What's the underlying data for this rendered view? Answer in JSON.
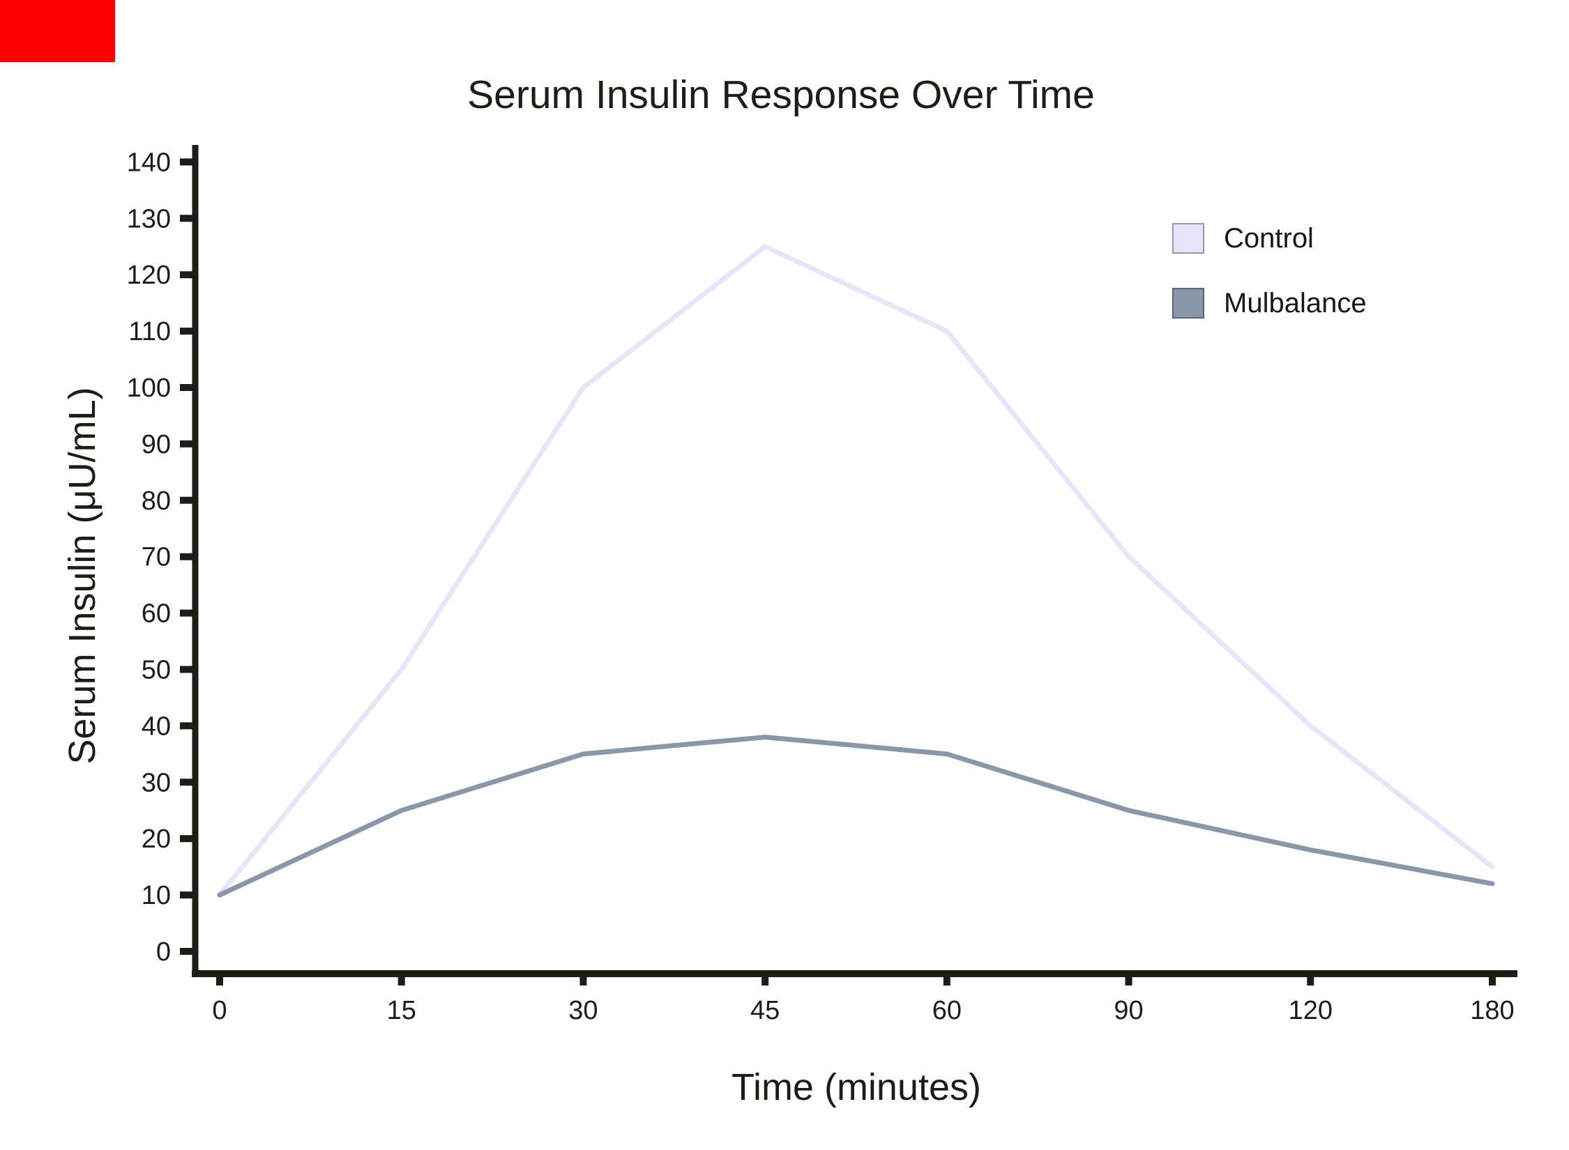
{
  "page": {
    "background": "#ffffff"
  },
  "artifact": {
    "description": "red rectangle in top-left corner",
    "color": "#fe0000"
  },
  "chart_data": {
    "type": "line",
    "title": "Serum Insulin Response Over Time",
    "xlabel": "Time (minutes)",
    "ylabel": "Serum Insulin (μU/mL)",
    "categories": [
      "0",
      "15",
      "30",
      "45",
      "60",
      "90",
      "120",
      "180"
    ],
    "yticks": [
      "0",
      "10",
      "20",
      "30",
      "40",
      "50",
      "60",
      "70",
      "80",
      "90",
      "100",
      "110",
      "120",
      "130",
      "140"
    ],
    "ylim": [
      0,
      140
    ],
    "grid": false,
    "legend_position": "upper right",
    "axis_color": "#1d1d15",
    "series": [
      {
        "name": "Control",
        "color": "#e6e6fa",
        "swatch_border": "#9898a4",
        "values": [
          10,
          50,
          100,
          125,
          110,
          70,
          40,
          15
        ]
      },
      {
        "name": "Mulbalance",
        "color": "#8997ab",
        "swatch_border": "#5c6573",
        "values": [
          10,
          25,
          35,
          38,
          35,
          25,
          18,
          12
        ]
      }
    ]
  }
}
